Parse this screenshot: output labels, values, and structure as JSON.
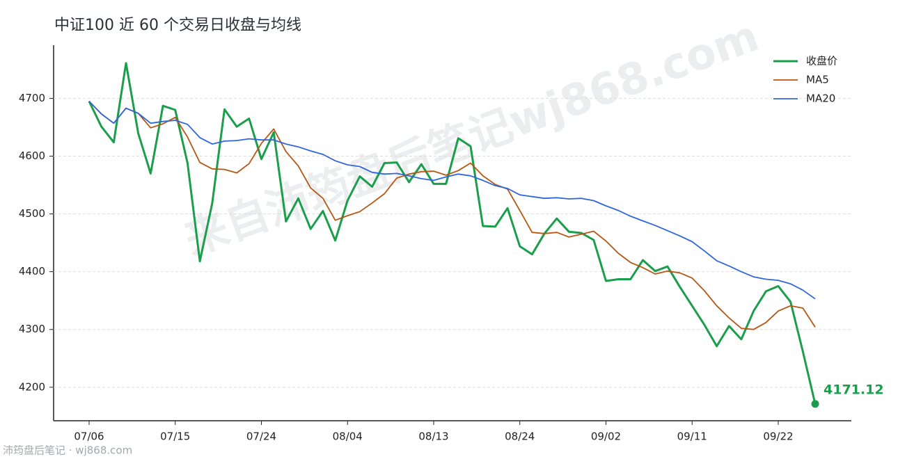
{
  "chart_data": {
    "type": "line",
    "title": "中证100 近 60 个交易日收盘与均线",
    "watermark": "来自沛筠盘后笔记wj868.com",
    "footer": "沛筠盘后笔记 · wj868.com",
    "categories": [
      "07/06",
      null,
      null,
      null,
      null,
      null,
      null,
      "07/15",
      null,
      null,
      null,
      null,
      null,
      null,
      "07/24",
      null,
      null,
      null,
      null,
      null,
      null,
      "08/04",
      null,
      null,
      null,
      null,
      null,
      null,
      "08/13",
      null,
      null,
      null,
      null,
      null,
      null,
      "08/24",
      null,
      null,
      null,
      null,
      null,
      null,
      "09/02",
      null,
      null,
      null,
      null,
      null,
      null,
      "09/11",
      null,
      null,
      null,
      null,
      null,
      null,
      "09/22",
      null,
      null,
      null
    ],
    "series": [
      {
        "name": "收盘价",
        "color": "#1a9e4b",
        "width": 3,
        "values": [
          4695,
          4651,
          4624,
          4761,
          4639,
          4570,
          4687,
          4680,
          4588,
          4418,
          4518,
          4681,
          4651,
          4665,
          4595,
          4641,
          4487,
          4527,
          4474,
          4505,
          4454,
          4523,
          4565,
          4547,
          4588,
          4589,
          4555,
          4586,
          4552,
          4552,
          4631,
          4617,
          4479,
          4478,
          4510,
          4444,
          4430,
          4466,
          4492,
          4469,
          4467,
          4455,
          4384,
          4387,
          4387,
          4420,
          4401,
          4409,
          4374,
          4341,
          4308,
          4271,
          4306,
          4283,
          4332,
          4366,
          4375,
          4348,
          4262,
          4171.12
        ]
      },
      {
        "name": "MA5",
        "color": "#b8560f",
        "width": 1.8,
        "values": [
          4695,
          4673,
          4657,
          4683,
          4674,
          4649,
          4656,
          4667,
          4633,
          4589,
          4578,
          4577,
          4571,
          4587,
          4622,
          4647,
          4608,
          4583,
          4545,
          4527,
          4489,
          4497,
          4504,
          4519,
          4535,
          4562,
          4569,
          4573,
          4574,
          4567,
          4575,
          4588,
          4566,
          4551,
          4543,
          4506,
          4468,
          4466,
          4468,
          4460,
          4465,
          4470,
          4453,
          4432,
          4416,
          4407,
          4396,
          4401,
          4398,
          4389,
          4367,
          4341,
          4320,
          4302,
          4300,
          4312,
          4332,
          4341,
          4337,
          4304
        ]
      },
      {
        "name": "MA20",
        "color": "#2f66dd",
        "width": 1.8,
        "values": [
          4695,
          4673,
          4657,
          4683,
          4674,
          4657,
          4660,
          4662,
          4655,
          4632,
          4621,
          4626,
          4627,
          4630,
          4628,
          4628,
          4621,
          4616,
          4609,
          4603,
          4592,
          4585,
          4582,
          4572,
          4569,
          4570,
          4566,
          4561,
          4558,
          4564,
          4569,
          4566,
          4558,
          4549,
          4544,
          4533,
          4530,
          4527,
          4528,
          4526,
          4527,
          4523,
          4514,
          4506,
          4496,
          4488,
          4480,
          4471,
          4462,
          4452,
          4436,
          4419,
          4410,
          4400,
          4391,
          4387,
          4385,
          4379,
          4368,
          4353
        ]
      }
    ],
    "ylim": [
      4142,
      4792
    ],
    "yticks": [
      4200,
      4300,
      4400,
      4500,
      4600,
      4700
    ],
    "grid": true,
    "legend": "upper right"
  }
}
